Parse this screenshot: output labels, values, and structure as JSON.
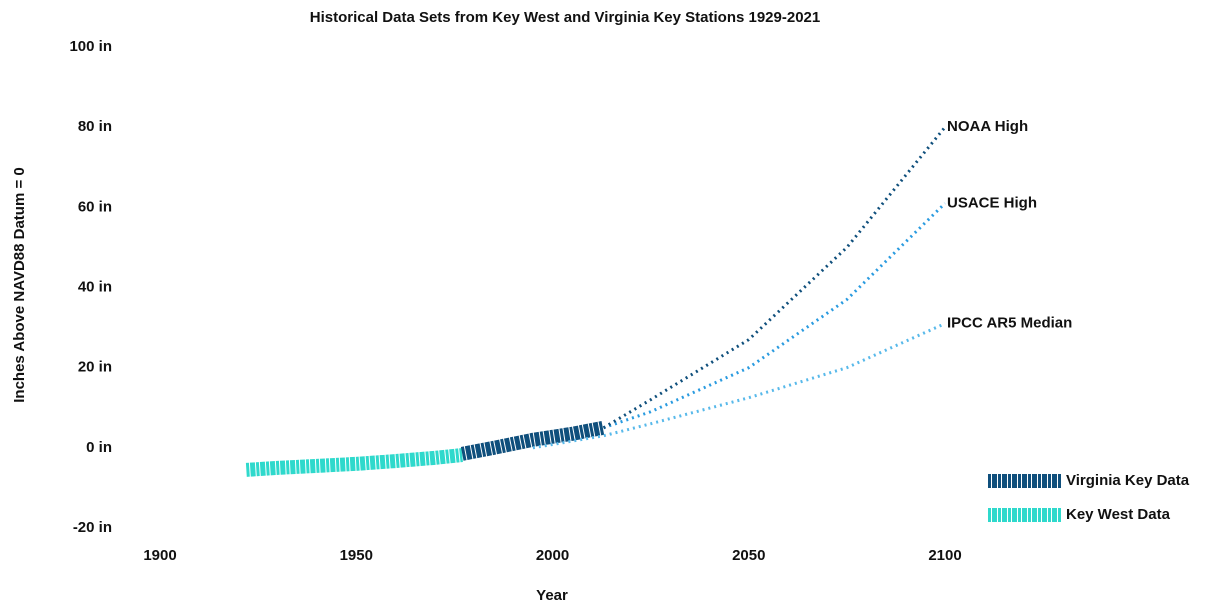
{
  "chart_data": {
    "type": "line",
    "title": "Historical Data Sets from Key West and Virginia Key Stations 1929-2021",
    "x_label": "Year",
    "y_label": "Inches Above NAVD88  Datum = 0",
    "xlim": [
      1900,
      2100
    ],
    "ylim": [
      -20,
      100
    ],
    "xticks": [
      1900,
      1950,
      2000,
      2050,
      2100
    ],
    "yticks": [
      {
        "value": -20,
        "label": "-20 in"
      },
      {
        "value": 0,
        "label": "0 in"
      },
      {
        "value": 20,
        "label": "20 in"
      },
      {
        "value": 40,
        "label": "40 in"
      },
      {
        "value": 60,
        "label": "60 in"
      },
      {
        "value": 80,
        "label": "80 in"
      },
      {
        "value": 100,
        "label": "100 in"
      }
    ],
    "series": [
      {
        "name": "Key West Data",
        "color": "#2fd9cc",
        "style": "band",
        "label_at": "legend",
        "x": [
          1922,
          1930,
          1940,
          1950,
          1960,
          1970,
          1977
        ],
        "values": [
          -5.5,
          -5,
          -4.5,
          -4,
          -3.3,
          -2.5,
          -1.8
        ]
      },
      {
        "name": "Virginia Key Data",
        "color": "#0f4f7c",
        "style": "band",
        "label_at": "legend",
        "x": [
          1977,
          1985,
          1995,
          2005,
          2013
        ],
        "values": [
          -1.5,
          0,
          2,
          3.5,
          5
        ]
      },
      {
        "name": "IPCC AR5 Median",
        "color": "#58b9ea",
        "style": "dotted",
        "label_at": "end",
        "x": [
          1995,
          2013,
          2025,
          2050,
          2075,
          2100
        ],
        "values": [
          0,
          3,
          6,
          12.5,
          20,
          31
        ]
      },
      {
        "name": "USACE High",
        "color": "#2a9be0",
        "style": "dotted",
        "label_at": "end",
        "x": [
          2013,
          2025,
          2050,
          2075,
          2100
        ],
        "values": [
          5,
          9,
          20,
          37,
          61
        ]
      },
      {
        "name": "NOAA High",
        "color": "#0f4f7c",
        "style": "dotted",
        "label_at": "end",
        "x": [
          2013,
          2025,
          2050,
          2075,
          2100
        ],
        "values": [
          5,
          12,
          27,
          50,
          80
        ]
      }
    ]
  }
}
